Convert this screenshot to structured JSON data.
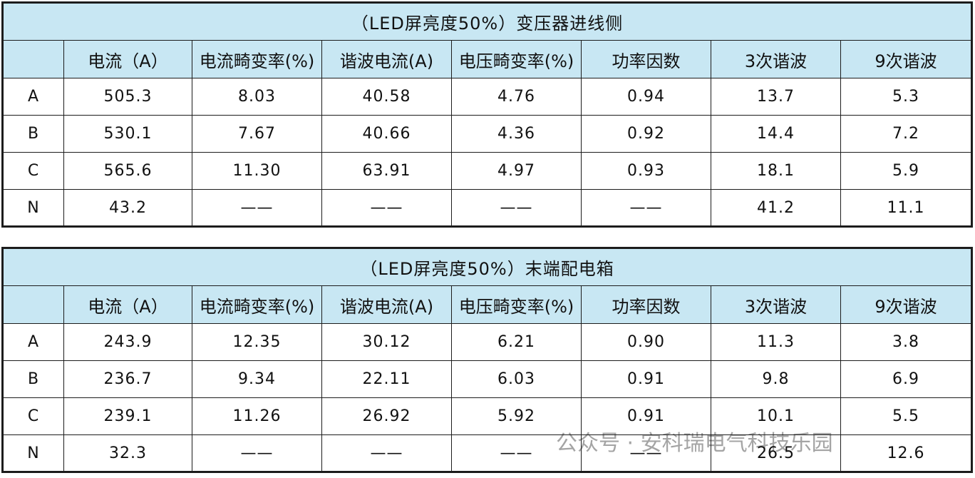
{
  "tables": [
    {
      "title": "（LED屏亮度50%）变压器进线侧",
      "headers": [
        "电流（A）",
        "电流畸变率(%)",
        "谐波电流(A)",
        "电压畸变率(%)",
        "功率因数",
        "3次谐波",
        "9次谐波"
      ],
      "rows": [
        [
          "A",
          "505.3",
          "8.03",
          "40.58",
          "4.76",
          "0.94",
          "13.7",
          "5.3"
        ],
        [
          "B",
          "530.1",
          "7.67",
          "40.66",
          "4.36",
          "0.92",
          "14.4",
          "7.2"
        ],
        [
          "C",
          "565.6",
          "11.30",
          "63.91",
          "4.97",
          "0.93",
          "18.1",
          "5.9"
        ],
        [
          "N",
          "43.2",
          "——",
          "——",
          "——",
          "——",
          "41.2",
          "11.1"
        ]
      ]
    },
    {
      "title": "（LED屏亮度50%）末端配电箱",
      "headers": [
        "电流（A）",
        "电流畸变率(%)",
        "谐波电流(A)",
        "电压畸变率(%)",
        "功率因数",
        "3次谐波",
        "9次谐波"
      ],
      "rows": [
        [
          "A",
          "243.9",
          "12.35",
          "30.12",
          "6.21",
          "0.90",
          "11.3",
          "3.8"
        ],
        [
          "B",
          "236.7",
          "9.34",
          "22.11",
          "6.03",
          "0.91",
          "9.8",
          "6.9"
        ],
        [
          "C",
          "239.1",
          "11.26",
          "26.92",
          "5.92",
          "0.91",
          "10.1",
          "5.5"
        ],
        [
          "N",
          "32.3",
          "——",
          "——",
          "——",
          "——",
          "26.5",
          "12.6"
        ]
      ]
    }
  ],
  "watermark": "公众号 · 安科瑞电气科技乐园"
}
